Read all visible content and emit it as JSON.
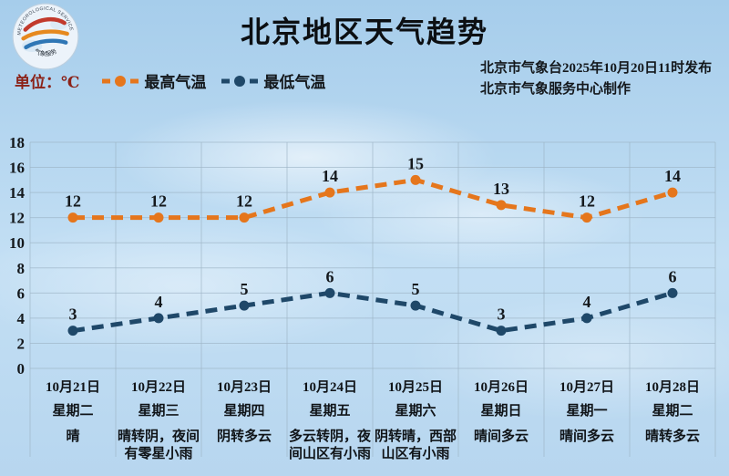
{
  "header": {
    "title": "北京地区天气趋势",
    "publisher_line1": "北京市气象台2025年10月20日11时发布",
    "publisher_line2": "北京市气象服务中心制作"
  },
  "logo": {
    "arc_text": "METEOROLOGICAL SERVICE",
    "bottom_text": "气象服务"
  },
  "legend": {
    "unit": "单位：℃",
    "unit_color": "#8b2218",
    "high_label": "最高气温",
    "low_label": "最低气温"
  },
  "colors": {
    "high": "#e5761c",
    "low": "#1f4869",
    "grid": "#9db3c4",
    "text": "#14181c"
  },
  "chart_data": {
    "type": "line",
    "title": "北京地区天气趋势",
    "categories": [
      "10月21日",
      "10月22日",
      "10月23日",
      "10月24日",
      "10月25日",
      "10月26日",
      "10月27日",
      "10月28日"
    ],
    "weekdays": [
      "星期二",
      "星期三",
      "星期四",
      "星期五",
      "星期六",
      "星期日",
      "星期一",
      "星期二"
    ],
    "weather": [
      "晴",
      "晴转阴，夜间有零星小雨",
      "阴转多云",
      "多云转阴，夜间山区有小雨",
      "阴转晴，西部山区有小雨",
      "晴间多云",
      "晴间多云",
      "晴转多云"
    ],
    "series": [
      {
        "name": "最高气温",
        "color": "#e5761c",
        "values": [
          12,
          12,
          12,
          14,
          15,
          13,
          12,
          14
        ]
      },
      {
        "name": "最低气温",
        "color": "#1f4869",
        "values": [
          3,
          4,
          5,
          6,
          5,
          3,
          4,
          6
        ]
      }
    ],
    "ylim": [
      0,
      18
    ],
    "ytick_step": 2,
    "grid": true,
    "line_style": "dashed",
    "legend_position": "top-left"
  }
}
